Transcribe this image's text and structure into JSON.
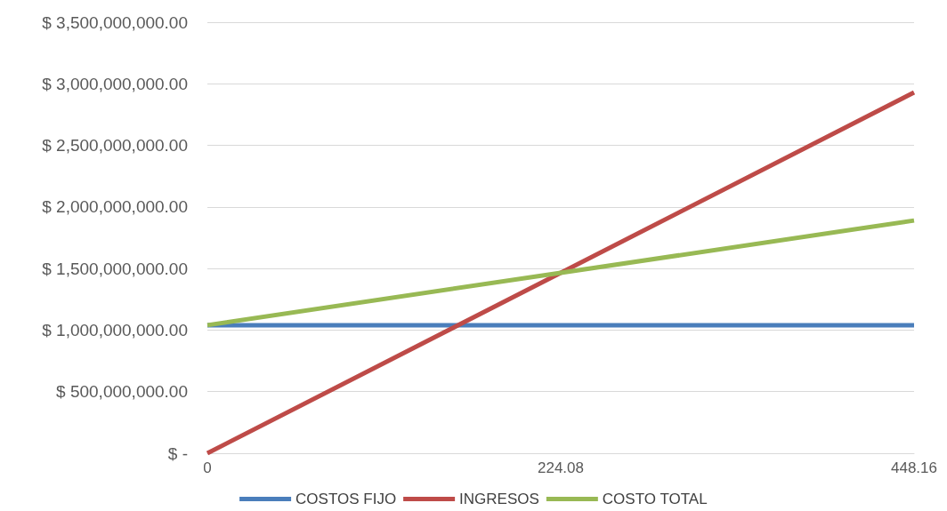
{
  "chart_data": {
    "type": "line",
    "categories": [
      "0",
      "224.08",
      "448.16"
    ],
    "series": [
      {
        "name": "COSTOS FIJO",
        "color": "#4a7ebb",
        "values": [
          1040000000,
          1040000000,
          1040000000
        ]
      },
      {
        "name": "INGRESOS",
        "color": "#be4b48",
        "values": [
          0,
          1465000000,
          2930000000
        ]
      },
      {
        "name": "COSTO TOTAL",
        "color": "#98b954",
        "values": [
          1040000000,
          1465000000,
          1890000000
        ]
      }
    ],
    "ylim": [
      0,
      3500000000
    ],
    "yticks": [
      {
        "value": 0,
        "label": "$ -"
      },
      {
        "value": 500000000,
        "label": "$ 500,000,000.00"
      },
      {
        "value": 1000000000,
        "label": "$ 1,000,000,000.00"
      },
      {
        "value": 1500000000,
        "label": "$ 1,500,000,000.00"
      },
      {
        "value": 2000000000,
        "label": "$ 2,000,000,000.00"
      },
      {
        "value": 2500000000,
        "label": "$ 2,500,000,000.00"
      },
      {
        "value": 3000000000,
        "label": "$ 3,000,000,000.00"
      },
      {
        "value": 3500000000,
        "label": "$ 3,500,000,000.00"
      }
    ],
    "grid": "y",
    "legend": "bottom",
    "marker": "none",
    "line_style": "solid"
  }
}
